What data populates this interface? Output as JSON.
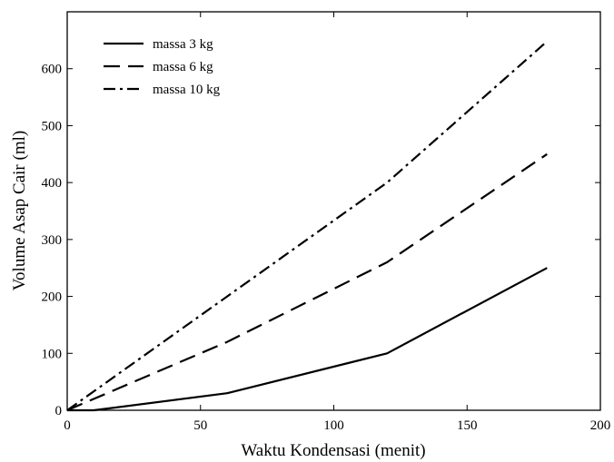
{
  "chart_data": {
    "type": "line",
    "title": "",
    "xlabel": "Waktu Kondensasi (menit)",
    "ylabel": "Volume Asap Cair (ml)",
    "xlim": [
      0,
      200
    ],
    "ylim": [
      0,
      700
    ],
    "xticks": [
      0,
      50,
      100,
      150,
      200
    ],
    "yticks": [
      0,
      100,
      200,
      300,
      400,
      500,
      600
    ],
    "grid": false,
    "legend_position": "top-left",
    "series": [
      {
        "name": "massa 3 kg",
        "style": "solid",
        "color": "#000000",
        "x": [
          0,
          10,
          60,
          120,
          180
        ],
        "y": [
          0,
          0,
          30,
          100,
          250
        ]
      },
      {
        "name": "massa 6 kg",
        "style": "dashed",
        "color": "#000000",
        "x": [
          0,
          60,
          120,
          180
        ],
        "y": [
          0,
          120,
          260,
          450
        ]
      },
      {
        "name": "massa 10 kg",
        "style": "dash-dot",
        "color": "#000000",
        "x": [
          0,
          60,
          120,
          180
        ],
        "y": [
          0,
          200,
          400,
          648
        ]
      }
    ]
  }
}
